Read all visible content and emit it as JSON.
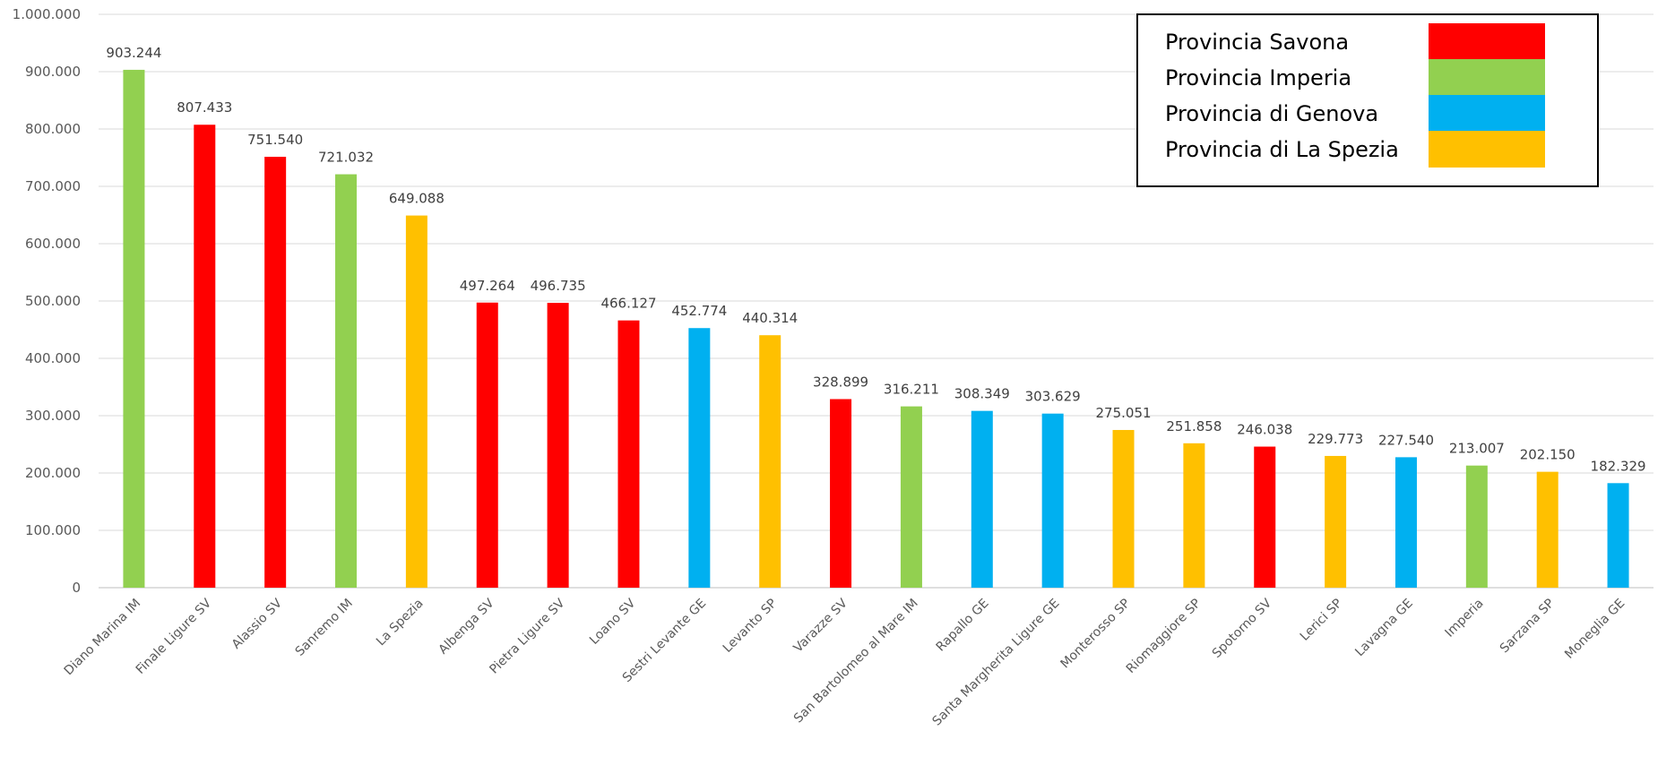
{
  "chart_data": {
    "type": "bar",
    "title": "",
    "xlabel": "",
    "ylabel": "",
    "ylim": [
      0,
      1000000
    ],
    "yticks": [
      "0",
      "100.000",
      "200.000",
      "300.000",
      "400.000",
      "500.000",
      "600.000",
      "700.000",
      "800.000",
      "900.000",
      "1.000.000"
    ],
    "grid": true,
    "legend_position": "top-right",
    "categories": [
      "Diano Marina IM",
      "Finale Ligure SV",
      "Alassio SV",
      "Sanremo IM",
      "La Spezia",
      "Albenga SV",
      "Pietra Ligure SV",
      "Loano SV",
      "Sestri Levante GE",
      "Levanto SP",
      "Varazze SV",
      "San Bartolomeo al Mare IM",
      "Rapallo GE",
      "Santa Margherita Ligure GE",
      "Monterosso SP",
      "Riomaggiore SP",
      "Spotorno SV",
      "Lerici SP",
      "Lavagna GE",
      "Imperia",
      "Sarzana SP",
      "Moneglia GE"
    ],
    "values": [
      903244,
      807433,
      751540,
      721032,
      649088,
      497264,
      496735,
      466127,
      452774,
      440314,
      328899,
      316211,
      308349,
      303629,
      275051,
      251858,
      246038,
      229773,
      227540,
      213007,
      202150,
      182329
    ],
    "value_labels": [
      "903.244",
      "807.433",
      "751.540",
      "721.032",
      "649.088",
      "497.264",
      "496.735",
      "466.127",
      "452.774",
      "440.314",
      "328.899",
      "316.211",
      "308.349",
      "303.629",
      "275.051",
      "251.858",
      "246.038",
      "229.773",
      "227.540",
      "213.007",
      "202.150",
      "182.329"
    ],
    "group": [
      "imperia",
      "savona",
      "savona",
      "imperia",
      "laspezia",
      "savona",
      "savona",
      "savona",
      "genova",
      "laspezia",
      "savona",
      "imperia",
      "genova",
      "genova",
      "laspezia",
      "laspezia",
      "savona",
      "laspezia",
      "genova",
      "imperia",
      "laspezia",
      "genova"
    ],
    "legend": [
      {
        "key": "savona",
        "label": "Provincia Savona",
        "color": "#ff0000"
      },
      {
        "key": "imperia",
        "label": "Provincia Imperia",
        "color": "#92d050"
      },
      {
        "key": "genova",
        "label": "Provincia di Genova",
        "color": "#00b0f0"
      },
      {
        "key": "laspezia",
        "label": "Provincia di La Spezia",
        "color": "#ffc000"
      }
    ]
  }
}
